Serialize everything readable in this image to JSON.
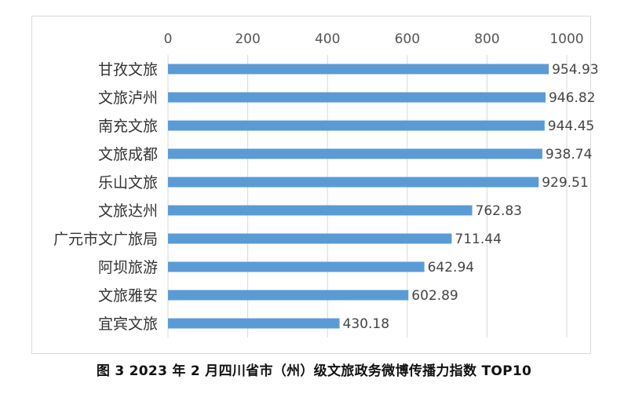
{
  "chart_data": {
    "type": "bar",
    "orientation": "horizontal",
    "categories": [
      "甘孜文旅",
      "文旅泸州",
      "南充文旅",
      "文旅成都",
      "乐山文旅",
      "文旅达州",
      "广元市文广旅局",
      "阿坝旅游",
      "文旅雅安",
      "宜宾文旅"
    ],
    "values": [
      954.93,
      946.82,
      944.45,
      938.74,
      929.51,
      762.83,
      711.44,
      642.94,
      602.89,
      430.18
    ],
    "data_labels": [
      "954.93",
      "946.82",
      "944.45",
      "938.74",
      "929.51",
      "762.83",
      "711.44",
      "642.94",
      "602.89",
      "430.18"
    ],
    "x_ticks": [
      "0",
      "200",
      "400",
      "600",
      "800",
      "1000"
    ],
    "xlim": [
      0,
      1000
    ],
    "axis_position": "top",
    "grid": true,
    "bar_color": "#5b9bd5",
    "title": "",
    "xlabel": "",
    "ylabel": ""
  },
  "caption": "图 3   2023 年 2 月四川省市（州）级文旅政务微博传播力指数 TOP10"
}
